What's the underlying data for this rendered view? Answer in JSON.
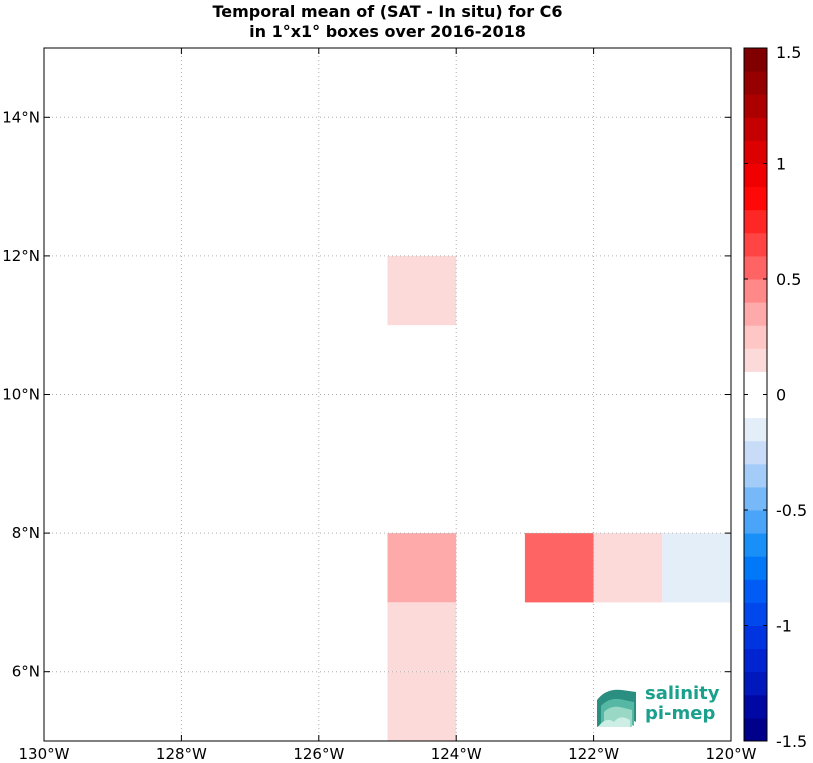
{
  "chart_data": {
    "type": "heatmap",
    "title_line1": "Temporal mean of (SAT - In situ) for C6",
    "title_line2": "in 1°x1° boxes over 2016-2018",
    "xlim": [
      -130,
      -120
    ],
    "ylim": [
      5,
      15
    ],
    "x_ticks": [
      {
        "value": -130,
        "label": "130°W"
      },
      {
        "value": -128,
        "label": "128°W"
      },
      {
        "value": -126,
        "label": "126°W"
      },
      {
        "value": -124,
        "label": "124°W"
      },
      {
        "value": -122,
        "label": "122°W"
      },
      {
        "value": -120,
        "label": "120°W"
      }
    ],
    "y_ticks": [
      {
        "value": 6,
        "label": "6°N"
      },
      {
        "value": 8,
        "label": "8°N"
      },
      {
        "value": 10,
        "label": "10°N"
      },
      {
        "value": 12,
        "label": "12°N"
      },
      {
        "value": 14,
        "label": "14°N"
      }
    ],
    "grid": true,
    "cells": [
      {
        "lon": -125,
        "lat": 11,
        "value": 0.15
      },
      {
        "lon": -125,
        "lat": 7,
        "value": 0.3
      },
      {
        "lon": -125,
        "lat": 6,
        "value": 0.15
      },
      {
        "lon": -125,
        "lat": 5,
        "value": 0.15
      },
      {
        "lon": -123,
        "lat": 7,
        "value": 0.55
      },
      {
        "lon": -122,
        "lat": 7,
        "value": 0.15
      },
      {
        "lon": -121,
        "lat": 7,
        "value": -0.15
      }
    ],
    "colorbar": {
      "min": -1.5,
      "max": 1.5,
      "ticks": [
        {
          "value": 1.5,
          "label": "1.5"
        },
        {
          "value": 1,
          "label": "1"
        },
        {
          "value": 0.5,
          "label": "0.5"
        },
        {
          "value": 0,
          "label": "0"
        },
        {
          "value": -0.5,
          "label": "-0.5"
        },
        {
          "value": -1,
          "label": "-1"
        },
        {
          "value": -1.5,
          "label": "-1.5"
        }
      ],
      "colors": [
        "#00008a",
        "#0008a4",
        "#0018bc",
        "#0024d0",
        "#0034e0",
        "#0048ec",
        "#005cf4",
        "#0078f8",
        "#1890f8",
        "#4aa4f8",
        "#76b8f8",
        "#a4ccf8",
        "#c8dcf8",
        "#e4eef8",
        "#ffffff",
        "#ffffff",
        "#fddada",
        "#ffc6c6",
        "#ffaaaa",
        "#ff8888",
        "#ff6464",
        "#ff4444",
        "#ff2626",
        "#ff0808",
        "#f00000",
        "#dc0000",
        "#c40000",
        "#ac0000",
        "#960000",
        "#800000"
      ]
    }
  },
  "logo": {
    "line1": "salinity",
    "line2": "pi-mep",
    "color": "#1aa08c"
  }
}
